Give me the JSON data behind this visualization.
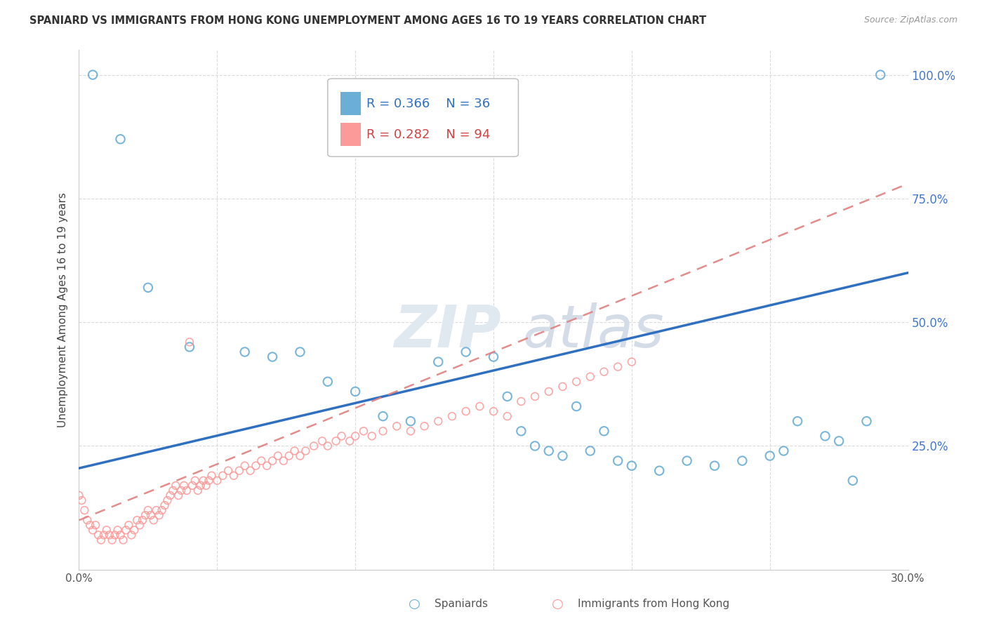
{
  "title": "SPANIARD VS IMMIGRANTS FROM HONG KONG UNEMPLOYMENT AMONG AGES 16 TO 19 YEARS CORRELATION CHART",
  "source": "Source: ZipAtlas.com",
  "ylabel": "Unemployment Among Ages 16 to 19 years",
  "xlim": [
    0.0,
    0.3
  ],
  "ylim": [
    0.0,
    1.05
  ],
  "legend_label1": "Spaniards",
  "legend_label2": "Immigrants from Hong Kong",
  "R1": "0.366",
  "N1": "36",
  "R2": "0.282",
  "N2": "94",
  "color1": "#6baed6",
  "color2": "#fb9a99",
  "trendline1_color": "#3070c0",
  "trendline2_color": "#e08080",
  "right_tick_color": "#4477cc",
  "blue_x": [
    0.005,
    0.015,
    0.025,
    0.04,
    0.06,
    0.07,
    0.08,
    0.09,
    0.1,
    0.11,
    0.12,
    0.13,
    0.14,
    0.15,
    0.155,
    0.16,
    0.165,
    0.17,
    0.175,
    0.18,
    0.185,
    0.19,
    0.195,
    0.2,
    0.21,
    0.22,
    0.23,
    0.24,
    0.25,
    0.255,
    0.26,
    0.27,
    0.275,
    0.28,
    0.285,
    0.29
  ],
  "blue_y": [
    1.0,
    0.87,
    0.57,
    0.45,
    0.44,
    0.43,
    0.44,
    0.38,
    0.36,
    0.31,
    0.3,
    0.42,
    0.44,
    0.43,
    0.35,
    0.28,
    0.25,
    0.24,
    0.23,
    0.33,
    0.24,
    0.28,
    0.22,
    0.21,
    0.2,
    0.22,
    0.21,
    0.22,
    0.23,
    0.24,
    0.3,
    0.27,
    0.26,
    0.18,
    0.3,
    1.0
  ],
  "pink_x": [
    0.0,
    0.001,
    0.002,
    0.003,
    0.004,
    0.005,
    0.006,
    0.007,
    0.008,
    0.009,
    0.01,
    0.011,
    0.012,
    0.013,
    0.014,
    0.015,
    0.016,
    0.017,
    0.018,
    0.019,
    0.02,
    0.021,
    0.022,
    0.023,
    0.024,
    0.025,
    0.026,
    0.027,
    0.028,
    0.029,
    0.03,
    0.031,
    0.032,
    0.033,
    0.034,
    0.035,
    0.036,
    0.037,
    0.038,
    0.039,
    0.04,
    0.041,
    0.042,
    0.043,
    0.044,
    0.045,
    0.046,
    0.047,
    0.048,
    0.05,
    0.052,
    0.054,
    0.056,
    0.058,
    0.06,
    0.062,
    0.064,
    0.066,
    0.068,
    0.07,
    0.072,
    0.074,
    0.076,
    0.078,
    0.08,
    0.082,
    0.085,
    0.088,
    0.09,
    0.093,
    0.095,
    0.098,
    0.1,
    0.103,
    0.106,
    0.11,
    0.115,
    0.12,
    0.125,
    0.13,
    0.135,
    0.14,
    0.145,
    0.15,
    0.155,
    0.16,
    0.165,
    0.17,
    0.175,
    0.18,
    0.185,
    0.19,
    0.195,
    0.2
  ],
  "pink_y": [
    0.15,
    0.14,
    0.12,
    0.1,
    0.09,
    0.08,
    0.09,
    0.07,
    0.06,
    0.07,
    0.08,
    0.07,
    0.06,
    0.07,
    0.08,
    0.07,
    0.06,
    0.08,
    0.09,
    0.07,
    0.08,
    0.1,
    0.09,
    0.1,
    0.11,
    0.12,
    0.11,
    0.1,
    0.12,
    0.11,
    0.12,
    0.13,
    0.14,
    0.15,
    0.16,
    0.17,
    0.15,
    0.16,
    0.17,
    0.16,
    0.46,
    0.17,
    0.18,
    0.16,
    0.17,
    0.18,
    0.17,
    0.18,
    0.19,
    0.18,
    0.19,
    0.2,
    0.19,
    0.2,
    0.21,
    0.2,
    0.21,
    0.22,
    0.21,
    0.22,
    0.23,
    0.22,
    0.23,
    0.24,
    0.23,
    0.24,
    0.25,
    0.26,
    0.25,
    0.26,
    0.27,
    0.26,
    0.27,
    0.28,
    0.27,
    0.28,
    0.29,
    0.28,
    0.29,
    0.3,
    0.31,
    0.32,
    0.33,
    0.32,
    0.31,
    0.34,
    0.35,
    0.36,
    0.37,
    0.38,
    0.39,
    0.4,
    0.41,
    0.42
  ],
  "trendline1_x0": 0.0,
  "trendline1_y0": 0.205,
  "trendline1_x1": 0.3,
  "trendline1_y1": 0.6,
  "trendline2_x0": 0.0,
  "trendline2_y0": 0.1,
  "trendline2_x1": 0.3,
  "trendline2_y1": 0.78
}
